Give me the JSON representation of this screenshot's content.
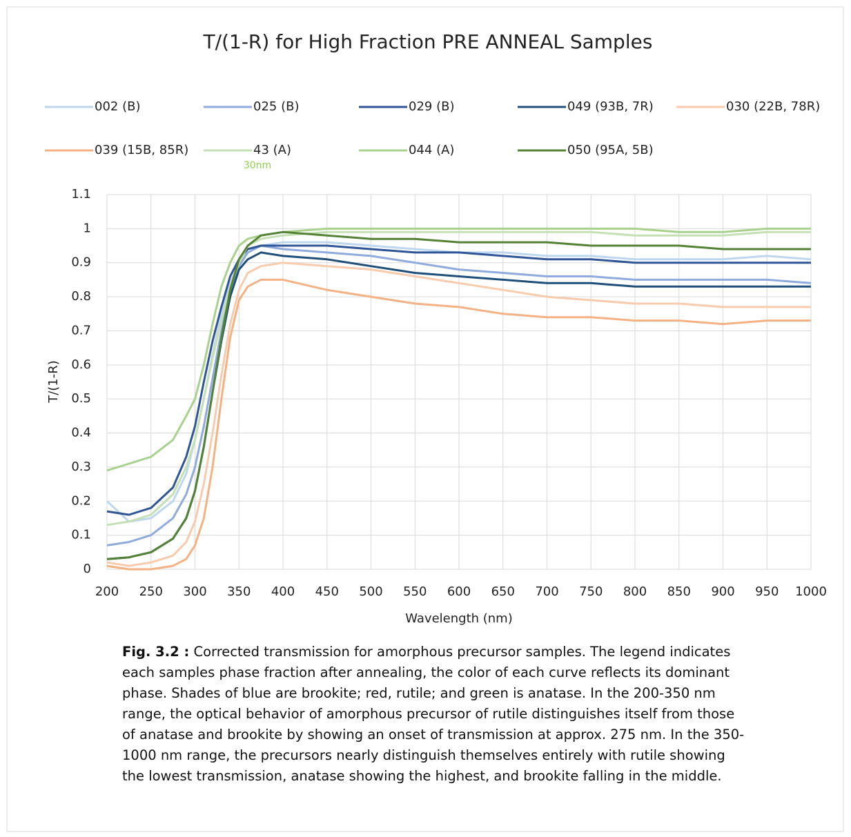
{
  "chart_data": {
    "type": "line",
    "title": "T/(1-R) for High Fraction PRE ANNEAL Samples",
    "x_label": "Wavelength (nm)",
    "y_label": "T/(1-R)",
    "annotation": "30nm",
    "xlim": [
      200,
      1000
    ],
    "xticks": [
      200,
      250,
      300,
      350,
      400,
      450,
      500,
      550,
      600,
      650,
      700,
      750,
      800,
      850,
      900,
      950,
      1000
    ],
    "ylim": [
      0,
      1.1
    ],
    "yticks": [
      0,
      0.1,
      0.2,
      0.3,
      0.4,
      0.5,
      0.6,
      0.7,
      0.8,
      0.9,
      1,
      1.1
    ],
    "grid": true,
    "legend": "top",
    "x": [
      200,
      225,
      250,
      275,
      290,
      300,
      310,
      320,
      330,
      340,
      350,
      360,
      375,
      400,
      450,
      500,
      550,
      600,
      650,
      700,
      750,
      800,
      850,
      900,
      950,
      1000
    ],
    "series": [
      {
        "name": "002 (B)",
        "color": "#bdd7ee",
        "values": [
          0.2,
          0.14,
          0.15,
          0.2,
          0.28,
          0.38,
          0.5,
          0.63,
          0.75,
          0.84,
          0.9,
          0.93,
          0.95,
          0.96,
          0.96,
          0.95,
          0.94,
          0.93,
          0.93,
          0.92,
          0.92,
          0.91,
          0.91,
          0.91,
          0.92,
          0.91
        ]
      },
      {
        "name": "025 (B)",
        "color": "#8faadc",
        "values": [
          0.07,
          0.08,
          0.1,
          0.15,
          0.22,
          0.3,
          0.42,
          0.56,
          0.7,
          0.82,
          0.89,
          0.93,
          0.95,
          0.94,
          0.93,
          0.92,
          0.9,
          0.88,
          0.87,
          0.86,
          0.86,
          0.85,
          0.85,
          0.85,
          0.85,
          0.84
        ]
      },
      {
        "name": "029 (B)",
        "color": "#2f5597",
        "values": [
          0.17,
          0.16,
          0.18,
          0.24,
          0.33,
          0.42,
          0.55,
          0.67,
          0.77,
          0.86,
          0.91,
          0.94,
          0.95,
          0.95,
          0.95,
          0.94,
          0.93,
          0.93,
          0.92,
          0.91,
          0.91,
          0.9,
          0.9,
          0.9,
          0.9,
          0.9
        ]
      },
      {
        "name": "049 (93B, 7R)",
        "color": "#1f4e79",
        "values": [
          0.03,
          0.035,
          0.05,
          0.09,
          0.15,
          0.23,
          0.36,
          0.52,
          0.67,
          0.8,
          0.88,
          0.91,
          0.93,
          0.92,
          0.91,
          0.89,
          0.87,
          0.86,
          0.85,
          0.84,
          0.84,
          0.83,
          0.83,
          0.83,
          0.83,
          0.83
        ]
      },
      {
        "name": "030 (22B, 78R)",
        "color": "#f8cbad",
        "values": [
          0.02,
          0.01,
          0.02,
          0.04,
          0.08,
          0.14,
          0.25,
          0.4,
          0.57,
          0.72,
          0.82,
          0.87,
          0.89,
          0.9,
          0.89,
          0.88,
          0.86,
          0.84,
          0.82,
          0.8,
          0.79,
          0.78,
          0.78,
          0.77,
          0.77,
          0.77
        ]
      },
      {
        "name": "039 (15B, 85R)",
        "color": "#f4b183",
        "values": [
          0.01,
          0,
          0,
          0.01,
          0.03,
          0.07,
          0.15,
          0.3,
          0.5,
          0.68,
          0.79,
          0.83,
          0.85,
          0.85,
          0.82,
          0.8,
          0.78,
          0.77,
          0.75,
          0.74,
          0.74,
          0.73,
          0.73,
          0.72,
          0.73,
          0.73
        ]
      },
      {
        "name": "43 (A)",
        "color": "#c5e0b4",
        "values": [
          0.13,
          0.14,
          0.16,
          0.22,
          0.3,
          0.38,
          0.5,
          0.62,
          0.73,
          0.83,
          0.9,
          0.95,
          0.97,
          0.98,
          0.99,
          0.99,
          0.99,
          0.99,
          0.99,
          0.99,
          0.99,
          0.98,
          0.98,
          0.98,
          0.99,
          0.99
        ]
      },
      {
        "name": "044 (A)",
        "color": "#a9d18e",
        "values": [
          0.29,
          0.31,
          0.33,
          0.38,
          0.45,
          0.5,
          0.6,
          0.72,
          0.83,
          0.9,
          0.95,
          0.97,
          0.98,
          0.99,
          1,
          1,
          1,
          1,
          1,
          1,
          1,
          1,
          0.99,
          0.99,
          1,
          1
        ]
      },
      {
        "name": "050 (95A, 5B)",
        "color": "#548235",
        "values": [
          0.03,
          0.035,
          0.05,
          0.09,
          0.15,
          0.23,
          0.36,
          0.52,
          0.68,
          0.82,
          0.91,
          0.95,
          0.98,
          0.99,
          0.98,
          0.97,
          0.97,
          0.96,
          0.96,
          0.96,
          0.95,
          0.95,
          0.95,
          0.94,
          0.94,
          0.94
        ]
      }
    ]
  },
  "caption": {
    "label": "Fig. 3.2 :",
    "text": "Corrected transmission for amorphous precursor samples. The legend indicates each samples phase fraction after annealing, the color of each curve reflects its dominant phase. Shades of blue are brookite; red, rutile; and green is anatase. In the 200-350 nm range, the optical behavior of amorphous precursor of rutile distinguishes itself from those of anatase and brookite by showing an onset of transmission at approx. 275 nm. In the 350-1000 nm range, the precursors nearly distinguish themselves entirely with rutile showing the lowest transmission, anatase showing the highest, and brookite falling in the middle."
  }
}
